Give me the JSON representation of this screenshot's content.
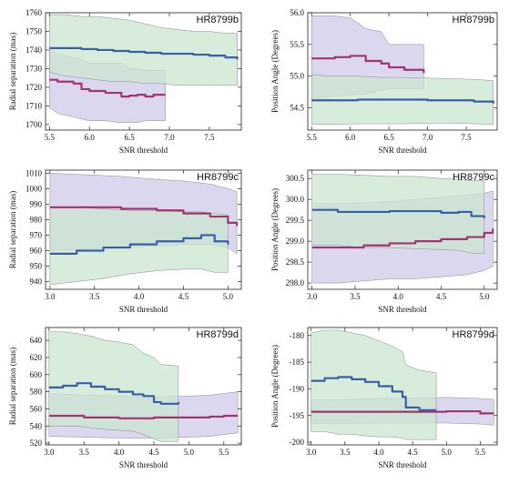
{
  "chart_data": [
    {
      "type": "line",
      "title": "HR8799b",
      "xlabel": "SNR threshold",
      "ylabel": "Radial separation (mas)",
      "xlim": [
        5.45,
        7.9
      ],
      "ylim": [
        1697,
        1760
      ],
      "xticks": [
        5.5,
        6.0,
        6.5,
        7.0,
        7.5
      ],
      "yticks": [
        1700,
        1710,
        1720,
        1730,
        1740,
        1750,
        1760
      ],
      "grid": false,
      "series": [
        {
          "color": "#3b5ea8",
          "fill": "#c9e6cf",
          "x": [
            5.5,
            5.7,
            5.9,
            6.1,
            6.3,
            6.5,
            6.7,
            6.9,
            7.1,
            7.3,
            7.5,
            7.7,
            7.85
          ],
          "values": [
            1741,
            1741,
            1740.5,
            1740,
            1739.5,
            1739,
            1738.5,
            1738,
            1738,
            1737.5,
            1737,
            1736,
            1735
          ],
          "band_upper": [
            1759,
            1759,
            1758,
            1758,
            1757,
            1756,
            1754,
            1752,
            1751,
            1750,
            1750,
            1749,
            1749
          ],
          "band_lower": [
            1728,
            1726,
            1725,
            1724,
            1723,
            1723,
            1722,
            1722,
            1721,
            1721,
            1721,
            1721,
            1721
          ]
        },
        {
          "color": "#a3356d",
          "fill": "#cfcaea",
          "x": [
            5.5,
            5.6,
            5.8,
            5.9,
            6.0,
            6.2,
            6.4,
            6.5,
            6.6,
            6.7,
            6.8,
            6.95
          ],
          "values": [
            1724,
            1723,
            1722,
            1719,
            1718,
            1717,
            1715,
            1715.5,
            1716,
            1715,
            1716,
            1716
          ],
          "band_upper": [
            1741,
            1738,
            1736,
            1735,
            1733,
            1733,
            1733,
            1730,
            1730,
            1729,
            1729,
            1729
          ],
          "band_lower": [
            1709,
            1706,
            1704,
            1703,
            1702,
            1702,
            1701,
            1701,
            1701,
            1702,
            1702,
            1702
          ]
        }
      ]
    },
    {
      "type": "line",
      "title": "HR8799b",
      "xlabel": "SNR threshold",
      "ylabel": "Position Angle (Degrees)",
      "xlim": [
        5.45,
        7.9
      ],
      "ylim": [
        54.15,
        56.0
      ],
      "xticks": [
        5.5,
        6.0,
        6.5,
        7.0,
        7.5
      ],
      "yticks": [
        54.5,
        55.0,
        55.5,
        56.0
      ],
      "grid": false,
      "series": [
        {
          "color": "#3b5ea8",
          "fill": "#c9e6cf",
          "x": [
            5.5,
            5.8,
            6.1,
            6.4,
            6.7,
            7.0,
            7.3,
            7.6,
            7.85
          ],
          "values": [
            54.62,
            54.62,
            54.63,
            54.63,
            54.63,
            54.62,
            54.62,
            54.6,
            54.57
          ],
          "band_upper": [
            55.02,
            55.0,
            55.0,
            54.98,
            54.98,
            54.97,
            54.96,
            54.95,
            54.93
          ],
          "band_lower": [
            54.24,
            54.24,
            54.25,
            54.25,
            54.25,
            54.26,
            54.26,
            54.25,
            54.24
          ]
        },
        {
          "color": "#a3356d",
          "fill": "#cfcaea",
          "x": [
            5.5,
            5.8,
            6.0,
            6.2,
            6.4,
            6.5,
            6.7,
            6.95
          ],
          "values": [
            55.28,
            55.3,
            55.32,
            55.24,
            55.2,
            55.14,
            55.1,
            55.05
          ],
          "band_upper": [
            55.95,
            55.95,
            55.92,
            55.75,
            55.7,
            55.5,
            55.5,
            55.5
          ],
          "band_lower": [
            54.65,
            54.68,
            54.7,
            54.72,
            54.78,
            54.8,
            54.8,
            54.8
          ]
        }
      ]
    },
    {
      "type": "line",
      "title": "HR8799c",
      "xlabel": "SNR threshold",
      "ylabel": "Radial separation (mas)",
      "xlim": [
        2.95,
        5.15
      ],
      "ylim": [
        935,
        1012
      ],
      "xticks": [
        3.0,
        3.5,
        4.0,
        4.5,
        5.0
      ],
      "yticks": [
        940,
        950,
        960,
        970,
        980,
        990,
        1000,
        1010
      ],
      "grid": false,
      "series": [
        {
          "color": "#3b5ea8",
          "fill": "#c9e6cf",
          "x": [
            3.0,
            3.3,
            3.6,
            3.9,
            4.2,
            4.5,
            4.7,
            4.85,
            5.0
          ],
          "values": [
            958,
            960,
            962,
            964,
            966,
            968,
            970,
            966,
            964
          ],
          "band_upper": [
            988,
            988,
            987,
            986,
            986,
            985,
            985,
            984,
            983
          ],
          "band_lower": [
            938,
            940,
            942,
            945,
            947,
            948,
            948,
            946,
            946
          ]
        },
        {
          "color": "#a3356d",
          "fill": "#cfcaea",
          "x": [
            3.0,
            3.4,
            3.8,
            4.2,
            4.5,
            4.8,
            5.0,
            5.1
          ],
          "values": [
            988,
            988,
            987,
            986,
            984,
            982,
            978,
            976
          ],
          "band_upper": [
            1010,
            1009,
            1008,
            1006,
            1005,
            1003,
            1000,
            998
          ],
          "band_lower": [
            960,
            961,
            962,
            963,
            964,
            964,
            962,
            958
          ]
        }
      ]
    },
    {
      "type": "line",
      "title": "HR8799c",
      "xlabel": "SNR threshold",
      "ylabel": "Position Angle (Degrees)",
      "xlim": [
        2.95,
        5.15
      ],
      "ylim": [
        297.85,
        300.7
      ],
      "xticks": [
        3.0,
        3.5,
        4.0,
        4.5,
        5.0
      ],
      "yticks": [
        298.0,
        298.5,
        299.0,
        299.5,
        300.0,
        300.5
      ],
      "grid": false,
      "series": [
        {
          "color": "#3b5ea8",
          "fill": "#c9e6cf",
          "x": [
            3.0,
            3.3,
            3.6,
            3.9,
            4.2,
            4.5,
            4.7,
            4.85,
            5.0
          ],
          "values": [
            299.75,
            299.7,
            299.7,
            299.72,
            299.72,
            299.68,
            299.7,
            299.6,
            299.55
          ],
          "band_upper": [
            300.6,
            300.6,
            300.58,
            300.55,
            300.55,
            300.5,
            300.48,
            300.45,
            300.45
          ],
          "band_lower": [
            298.9,
            298.9,
            298.85,
            298.85,
            298.82,
            298.8,
            298.78,
            298.72,
            298.7
          ]
        },
        {
          "color": "#a3356d",
          "fill": "#cfcaea",
          "x": [
            3.0,
            3.3,
            3.6,
            3.9,
            4.2,
            4.5,
            4.8,
            5.0,
            5.1
          ],
          "values": [
            298.85,
            298.85,
            298.9,
            298.95,
            299.0,
            299.05,
            299.1,
            299.2,
            299.3
          ],
          "band_upper": [
            299.9,
            299.9,
            299.92,
            299.95,
            300.0,
            300.05,
            300.1,
            300.15,
            300.2
          ],
          "band_lower": [
            298.0,
            298.0,
            298.05,
            298.1,
            298.1,
            298.15,
            298.2,
            298.3,
            298.4
          ]
        }
      ]
    },
    {
      "type": "line",
      "title": "HR8799d",
      "xlabel": "SNR threshold",
      "ylabel": "Radial separation (mas)",
      "xlim": [
        2.95,
        5.75
      ],
      "ylim": [
        518,
        655
      ],
      "xticks": [
        3.0,
        3.5,
        4.0,
        4.5,
        5.0,
        5.5
      ],
      "yticks": [
        520,
        540,
        560,
        580,
        600,
        620,
        640
      ],
      "grid": false,
      "series": [
        {
          "color": "#3b5ea8",
          "fill": "#c9e6cf",
          "x": [
            3.0,
            3.2,
            3.4,
            3.6,
            3.8,
            4.0,
            4.2,
            4.35,
            4.5,
            4.6,
            4.85
          ],
          "values": [
            585,
            587,
            590,
            586,
            583,
            580,
            577,
            575,
            568,
            566,
            568
          ],
          "band_upper": [
            650,
            650,
            648,
            645,
            640,
            638,
            635,
            625,
            620,
            612,
            610
          ],
          "band_lower": [
            540,
            540,
            540,
            538,
            536,
            535,
            534,
            530,
            525,
            522,
            522
          ]
        },
        {
          "color": "#a3356d",
          "fill": "#cfcaea",
          "x": [
            3.0,
            3.5,
            4.0,
            4.5,
            5.0,
            5.3,
            5.5,
            5.7
          ],
          "values": [
            552,
            550,
            549,
            550,
            550,
            551,
            552,
            552
          ],
          "band_upper": [
            578,
            576,
            575,
            574,
            575,
            576,
            578,
            580
          ],
          "band_lower": [
            528,
            527,
            526,
            526,
            527,
            528,
            530,
            532
          ]
        }
      ]
    },
    {
      "type": "line",
      "title": "HR8799d",
      "xlabel": "SNR threshold",
      "ylabel": "Position Angle (Degrees)",
      "xlim": [
        2.95,
        5.75
      ],
      "ylim": [
        -200.5,
        -178.5
      ],
      "xticks": [
        3.0,
        3.5,
        4.0,
        4.5,
        5.0,
        5.5
      ],
      "yticks": [
        -200,
        -195,
        -190,
        -185,
        -180
      ],
      "grid": false,
      "series": [
        {
          "color": "#3b5ea8",
          "fill": "#c9e6cf",
          "x": [
            3.0,
            3.2,
            3.4,
            3.6,
            3.8,
            4.0,
            4.2,
            4.35,
            4.4,
            4.6,
            4.85
          ],
          "values": [
            -188.5,
            -188.0,
            -187.8,
            -188.2,
            -188.7,
            -189.5,
            -190.5,
            -191.5,
            -193.5,
            -194.0,
            -194.0
          ],
          "band_upper": [
            -179.5,
            -179.0,
            -179.0,
            -179.5,
            -180.0,
            -181.0,
            -182.0,
            -183.0,
            -185.5,
            -186.5,
            -187.0
          ],
          "band_lower": [
            -198.0,
            -198.0,
            -198.5,
            -198.5,
            -198.8,
            -199.0,
            -199.0,
            -199.2,
            -199.5,
            -199.5,
            -199.5
          ]
        },
        {
          "color": "#a3356d",
          "fill": "#cfcaea",
          "x": [
            3.0,
            3.5,
            4.0,
            4.5,
            5.0,
            5.5,
            5.7
          ],
          "values": [
            -194.3,
            -194.3,
            -194.3,
            -194.3,
            -194.2,
            -194.6,
            -194.6
          ],
          "band_upper": [
            -192.0,
            -192.0,
            -191.8,
            -191.8,
            -191.6,
            -191.8,
            -192.0
          ],
          "band_lower": [
            -196.5,
            -196.5,
            -196.4,
            -196.4,
            -196.4,
            -196.6,
            -196.8
          ]
        }
      ]
    }
  ]
}
